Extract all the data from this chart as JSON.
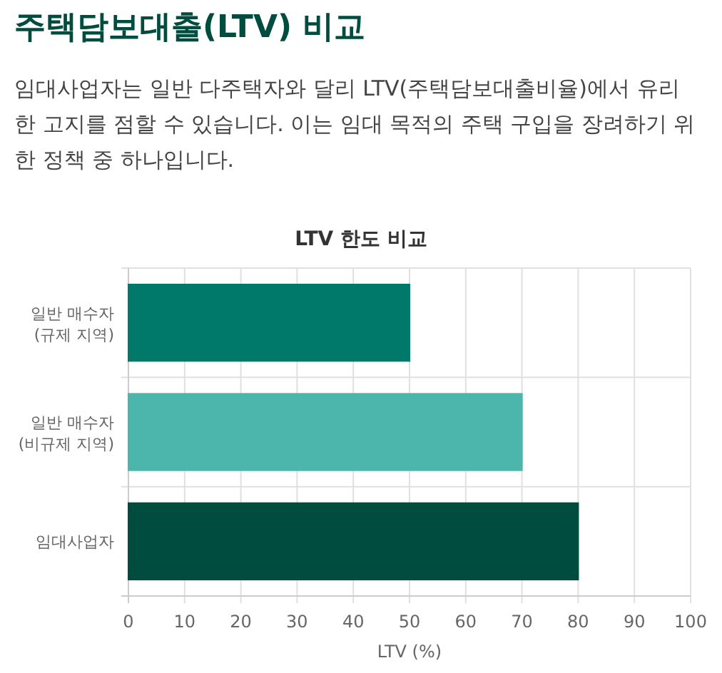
{
  "chart_data": {
    "type": "bar",
    "orientation": "horizontal",
    "title": "주택담보대출(LTV) 비교",
    "subtitle": "임대사업자는 일반 다주택자와 달리 LTV(주택담보대출비율)에서 유리한 고지를 점할 수 있습니다. 이는 임대 목적의 주택 구입을 장려하기 위한 정책 중 하나입니다.",
    "annotations": [
      "LTV 한도 비교"
    ],
    "categories": [
      "일반 매수자\n(규제 지역)",
      "일반 매수자\n(비규제 지역)",
      "임대사업자"
    ],
    "values": [
      50,
      70,
      80
    ],
    "colors": [
      "#00796b",
      "#4db6ac",
      "#004d40"
    ],
    "xlabel": "LTV (%)",
    "xlim": [
      0,
      100
    ],
    "xticks": [
      0,
      10,
      20,
      30,
      40,
      50,
      60,
      70,
      80,
      90,
      100
    ],
    "grid": true
  }
}
